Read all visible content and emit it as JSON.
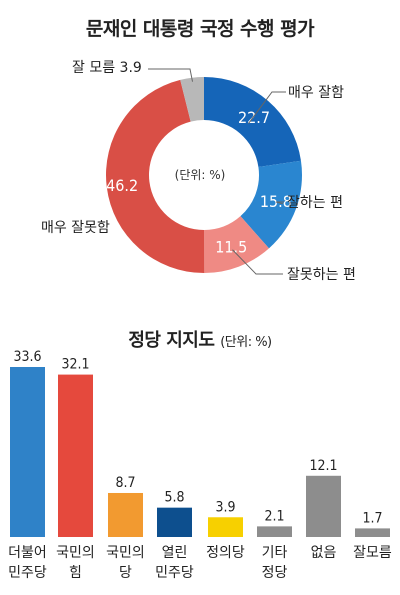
{
  "chart_data": [
    {
      "type": "pie",
      "title": "문재인 대통령 국정 수행 평가",
      "center_label": "(단위: %)",
      "categories": [
        "매우 잘함",
        "잘하는 편",
        "잘못하는 편",
        "매우 잘못함",
        "잘 모름"
      ],
      "values": [
        22.7,
        15.8,
        11.5,
        46.2,
        3.9
      ],
      "value_labels": [
        "22.7",
        "15.8",
        "11.5",
        "46.2",
        "3.9"
      ],
      "outside_labels": [
        "매우 잘함",
        "잘하는 편",
        "잘못하는 편",
        "매우 잘못함",
        "잘 모름 3.9"
      ],
      "colors": [
        "#1565b8",
        "#2a86d0",
        "#ef8a84",
        "#d94f46",
        "#b8b8b8"
      ]
    },
    {
      "type": "bar",
      "title": "정당 지지도",
      "unit": "(단위: %)",
      "categories": [
        [
          "더불어",
          "민주당"
        ],
        [
          "국민의",
          "힘"
        ],
        [
          "국민의",
          "당"
        ],
        [
          "열린",
          "민주당"
        ],
        [
          "정의당"
        ],
        [
          "기타",
          "정당"
        ],
        [
          "없음"
        ],
        [
          "잘모름"
        ]
      ],
      "values": [
        33.6,
        32.1,
        8.7,
        5.8,
        3.9,
        2.1,
        12.1,
        1.7
      ],
      "value_labels": [
        "33.6",
        "32.1",
        "8.7",
        "5.8",
        "3.9",
        "2.1",
        "12.1",
        "1.7"
      ],
      "colors": [
        "#2f82c8",
        "#e5493d",
        "#f29a30",
        "#0d4f8e",
        "#f7d000",
        "#8d8d8d",
        "#8d8d8d",
        "#8d8d8d"
      ],
      "ylim": [
        0,
        33.6
      ]
    }
  ]
}
